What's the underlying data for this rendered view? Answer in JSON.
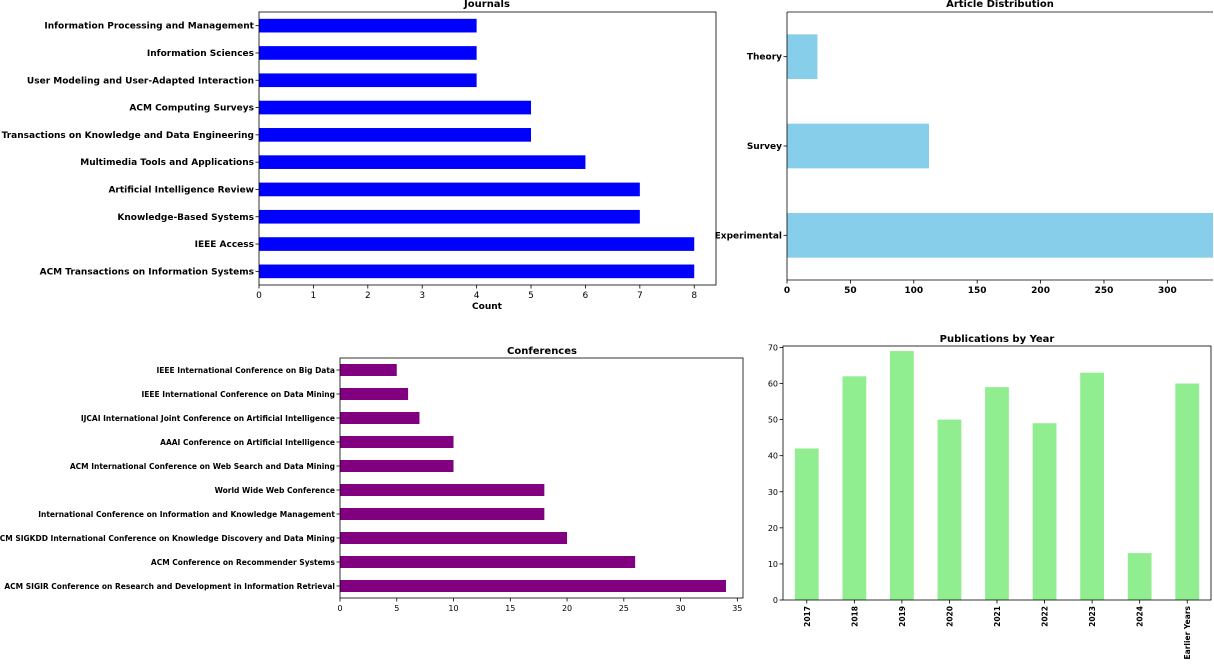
{
  "chart_data": [
    {
      "id": "journals",
      "type": "bar",
      "orientation": "horizontal",
      "title": "Journals",
      "xlabel": "Count",
      "ylabel": "",
      "xlim": [
        0,
        8.4
      ],
      "xticks": [
        0,
        1,
        2,
        3,
        4,
        5,
        6,
        7,
        8
      ],
      "color": "#0000ff",
      "categories": [
        "ACM Transactions on Information Systems",
        "IEEE Access",
        "Knowledge-Based Systems",
        "Artificial Intelligence Review",
        "Multimedia Tools and Applications",
        "IEEE Transactions on Knowledge and Data Engineering",
        "ACM Computing Surveys",
        "User Modeling and User-Adapted Interaction",
        "Information Sciences",
        "Information Processing and Management"
      ],
      "values": [
        8,
        8,
        7,
        7,
        6,
        5,
        5,
        4,
        4,
        4
      ]
    },
    {
      "id": "article-distribution",
      "type": "bar",
      "orientation": "horizontal",
      "title": "Article Distribution",
      "xlabel": "",
      "ylabel": "",
      "xlim": [
        0,
        336
      ],
      "xticks": [
        0,
        50,
        100,
        150,
        200,
        250,
        300
      ],
      "color": "#87ceeb",
      "categories": [
        "Experimental",
        "Survey",
        "Theory"
      ],
      "values": [
        336,
        112,
        24
      ]
    },
    {
      "id": "conferences",
      "type": "bar",
      "orientation": "horizontal",
      "title": "Conferences",
      "xlabel": "",
      "ylabel": "",
      "xlim": [
        0,
        35.5
      ],
      "xticks": [
        0,
        5,
        10,
        15,
        20,
        25,
        30,
        35
      ],
      "color": "#800080",
      "categories": [
        "ACM SIGIR Conference on Research and Development in Information Retrieval",
        "ACM Conference on Recommender Systems",
        "ACM SIGKDD International Conference on Knowledge Discovery and Data Mining",
        "International Conference on Information and Knowledge Management",
        "World Wide Web Conference",
        "ACM International Conference on Web Search and Data Mining",
        "AAAI Conference on Artificial Intelligence",
        "IJCAI International Joint Conference on Artificial Intelligence",
        "IEEE International Conference on Data Mining",
        "IEEE International Conference on Big Data"
      ],
      "values": [
        34,
        26,
        20,
        18,
        18,
        10,
        10,
        7,
        6,
        5
      ]
    },
    {
      "id": "publications-by-year",
      "type": "bar",
      "orientation": "vertical",
      "title": "Publications by Year",
      "xlabel": "",
      "ylabel": "",
      "ylim": [
        0,
        70
      ],
      "yticks": [
        0,
        10,
        20,
        30,
        40,
        50,
        60,
        70
      ],
      "color": "#90ee90",
      "categories": [
        "2017",
        "2018",
        "2019",
        "2020",
        "2021",
        "2022",
        "2023",
        "2024",
        "Earlier Years"
      ],
      "values": [
        42,
        62,
        69,
        50,
        59,
        49,
        63,
        13,
        60
      ]
    }
  ]
}
